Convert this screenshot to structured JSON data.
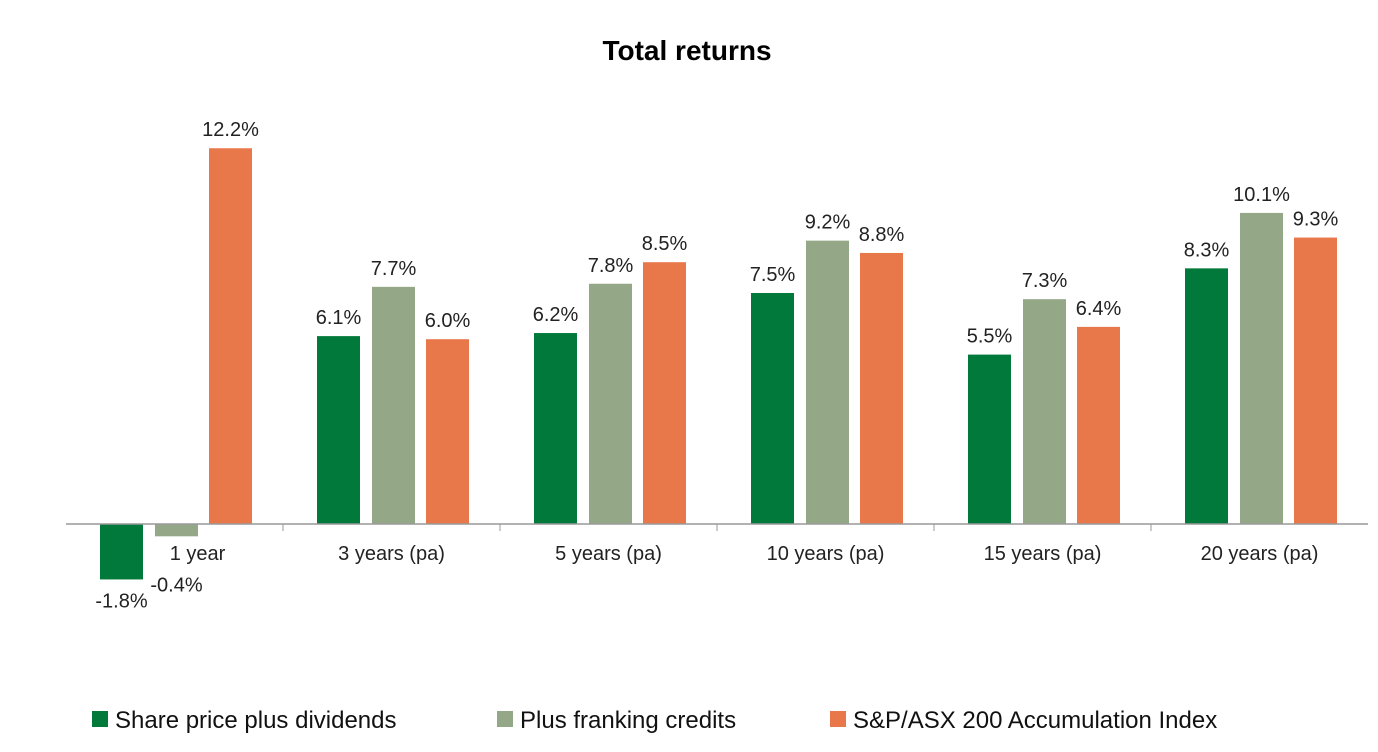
{
  "chart_data": {
    "type": "bar",
    "title": "Total returns",
    "xlabel": "",
    "ylabel": "",
    "categories": [
      "1 year",
      "3 years (pa)",
      "5 years (pa)",
      "10 years (pa)",
      "15 years (pa)",
      "20 years (pa)"
    ],
    "series": [
      {
        "name": "Share price plus dividends",
        "color": "#00793a",
        "values": [
          -1.8,
          6.1,
          6.2,
          7.5,
          5.5,
          8.3
        ]
      },
      {
        "name": "Plus franking credits",
        "color": "#94a888",
        "values": [
          -0.4,
          7.7,
          7.8,
          9.2,
          7.3,
          10.1
        ]
      },
      {
        "name": "S&P/ASX 200 Accumulation Index",
        "color": "#e8784a",
        "values": [
          12.2,
          6.0,
          8.5,
          8.8,
          6.4,
          9.3
        ]
      }
    ],
    "value_format": "%",
    "grid": false,
    "legend_position": "bottom"
  }
}
